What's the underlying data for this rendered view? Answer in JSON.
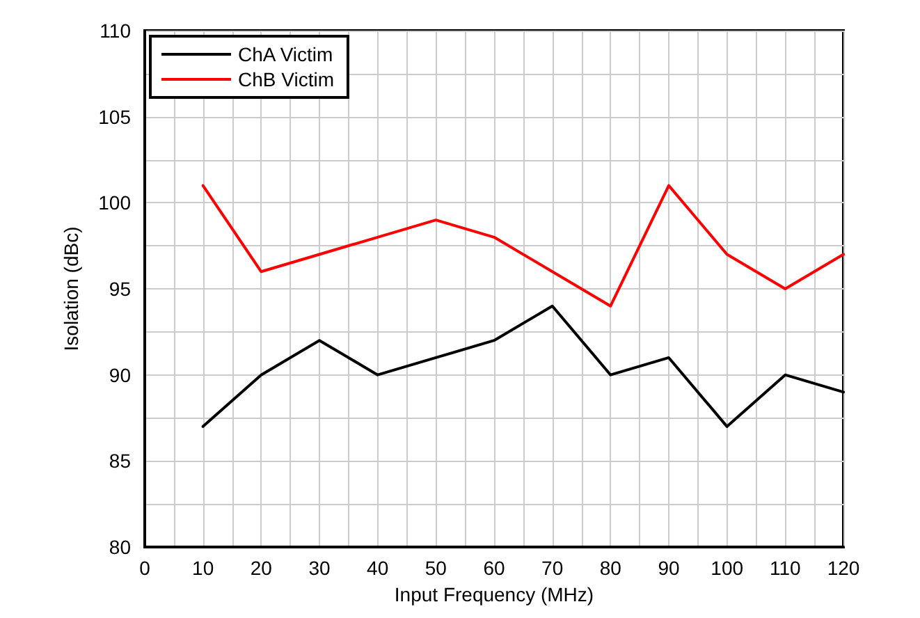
{
  "chart_data": {
    "type": "line",
    "xlabel": "Input Frequency (MHz)",
    "ylabel": "Isolation (dBc)",
    "x": [
      10,
      20,
      30,
      40,
      50,
      60,
      70,
      80,
      90,
      100,
      110,
      120
    ],
    "series": [
      {
        "name": "ChA Victim",
        "color": "#000000",
        "values": [
          87,
          90,
          92,
          90,
          91,
          92,
          94,
          90,
          91,
          87,
          90,
          89
        ]
      },
      {
        "name": "ChB Victim",
        "color": "#ff0000",
        "values": [
          101,
          96,
          97,
          98,
          99,
          98,
          96,
          94,
          101,
          97,
          95,
          97
        ]
      }
    ],
    "xlim": [
      0,
      120
    ],
    "xticks": [
      0,
      {
        "value": 5,
        "label": null
      },
      10,
      {
        "value": 15,
        "label": null
      },
      20,
      {
        "value": 25,
        "label": null
      },
      30,
      {
        "value": 35,
        "label": null
      },
      40,
      {
        "value": 45,
        "label": null
      },
      50,
      {
        "value": 55,
        "label": null
      },
      60,
      {
        "value": 65,
        "label": null
      },
      70,
      {
        "value": 75,
        "label": null
      },
      80,
      {
        "value": 85,
        "label": null
      },
      90,
      {
        "value": 95,
        "label": null
      },
      100,
      {
        "value": 105,
        "label": null
      },
      110,
      {
        "value": 115,
        "label": null
      },
      120
    ],
    "ylim": [
      80,
      110
    ],
    "yticks": [
      80,
      {
        "value": 82.5,
        "label": null
      },
      85,
      {
        "value": 87.5,
        "label": null
      },
      90,
      {
        "value": 92.5,
        "label": null
      },
      95,
      {
        "value": 97.5,
        "label": null
      },
      100,
      {
        "value": 102.5,
        "label": null
      },
      105,
      {
        "value": 107.5,
        "label": null
      },
      110
    ],
    "grid": true,
    "legend": "top left",
    "marker": "none",
    "line_style": "solid"
  }
}
